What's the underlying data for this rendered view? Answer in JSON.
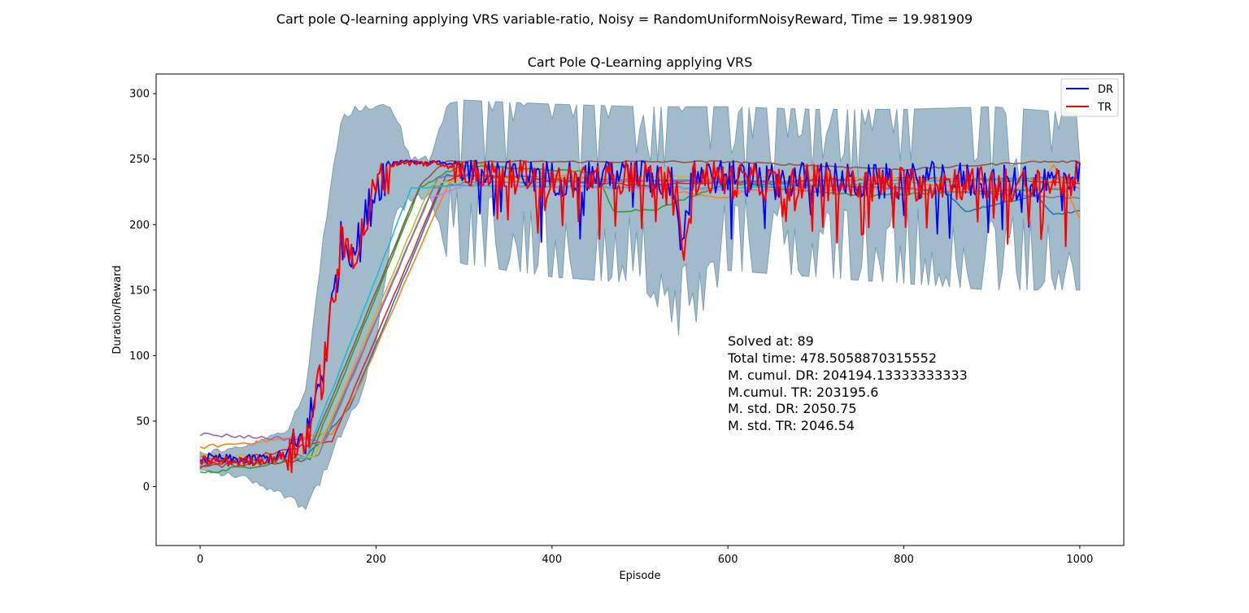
{
  "chart_data": {
    "type": "line",
    "suptitle": "Cart pole Q-learning applying VRS variable-ratio, Noisy = RandomUniformNoisyReward, Time = 19.981909",
    "title": "Cart Pole Q-Learning applying VRS",
    "xlabel": "Episode",
    "ylabel": "Duration/Reward",
    "xlim": [
      -50,
      1050
    ],
    "ylim": [
      -45,
      315
    ],
    "xticks": [
      0,
      200,
      400,
      600,
      800,
      1000
    ],
    "yticks": [
      0,
      50,
      100,
      150,
      200,
      250,
      300
    ],
    "grid": false,
    "legend": {
      "placement": "top-right",
      "entries": [
        {
          "label": "DR",
          "color": "#0000ff"
        },
        {
          "label": "TR",
          "color": "#ff0000"
        }
      ]
    },
    "annotations": [
      "Solved at: 89",
      "Total time: 478.5058870315552",
      "M. cumul. DR: 204194.13333333333",
      "M.cumul. TR: 203195.6",
      "M. std. DR: 2050.75",
      "M. std. TR: 2046.54"
    ],
    "band": {
      "color": "#7a9eb5",
      "x": [
        0,
        50,
        100,
        120,
        140,
        160,
        180,
        200,
        220,
        240,
        260,
        280,
        300,
        400,
        500,
        550,
        600,
        700,
        800,
        900,
        1000
      ],
      "upper": [
        28,
        32,
        45,
        80,
        195,
        285,
        293,
        293,
        290,
        255,
        252,
        292,
        295,
        292,
        290,
        290,
        290,
        288,
        288,
        290,
        285
      ],
      "lower": [
        10,
        5,
        -10,
        -20,
        5,
        35,
        60,
        105,
        200,
        215,
        220,
        175,
        170,
        160,
        155,
        110,
        165,
        160,
        155,
        150,
        150
      ]
    },
    "series": [
      {
        "name": "DR",
        "color": "#0000ff",
        "x": [
          0,
          50,
          100,
          120,
          140,
          160,
          180,
          200,
          210,
          220,
          240,
          260,
          280,
          300,
          350,
          400,
          450,
          500,
          540,
          550,
          560,
          600,
          650,
          700,
          750,
          800,
          850,
          900,
          950,
          1000
        ],
        "values": [
          22,
          20,
          24,
          38,
          90,
          185,
          185,
          230,
          240,
          248,
          249,
          248,
          247,
          245,
          240,
          235,
          238,
          240,
          230,
          190,
          240,
          236,
          233,
          235,
          232,
          233,
          235,
          232,
          230,
          240
        ]
      },
      {
        "name": "TR",
        "color": "#ff0000",
        "x": [
          0,
          50,
          100,
          120,
          140,
          160,
          180,
          200,
          210,
          220,
          240,
          260,
          280,
          300,
          350,
          400,
          450,
          500,
          540,
          550,
          560,
          600,
          650,
          700,
          750,
          800,
          850,
          900,
          950,
          1000
        ],
        "values": [
          20,
          19,
          23,
          36,
          88,
          182,
          183,
          228,
          238,
          247,
          248,
          247,
          246,
          243,
          238,
          233,
          236,
          238,
          228,
          186,
          238,
          234,
          231,
          233,
          230,
          231,
          233,
          230,
          228,
          238
        ]
      },
      {
        "color": "#1f77b4",
        "x": [
          0,
          120,
          170,
          280,
          450,
          600,
          800,
          850,
          870,
          950,
          970,
          1000
        ],
        "values": [
          18,
          22,
          60,
          238,
          235,
          232,
          228,
          224,
          210,
          222,
          208,
          210
        ]
      },
      {
        "color": "#ff7f0e",
        "x": [
          0,
          150,
          180,
          280,
          300,
          600,
          620,
          800,
          950,
          970,
          1000
        ],
        "values": [
          30,
          40,
          75,
          228,
          248,
          220,
          226,
          232,
          225,
          246,
          205
        ]
      },
      {
        "color": "#2ca02c",
        "x": [
          0,
          125,
          250,
          280,
          300,
          450,
          470,
          520,
          600,
          750,
          1000
        ],
        "values": [
          10,
          22,
          228,
          240,
          245,
          240,
          210,
          212,
          232,
          222,
          228
        ]
      },
      {
        "color": "#d62728",
        "x": [
          0,
          150,
          275,
          300,
          500,
          800,
          1000
        ],
        "values": [
          15,
          35,
          232,
          238,
          230,
          236,
          232
        ]
      },
      {
        "color": "#9467bd",
        "x": [
          0,
          140,
          270,
          300,
          600,
          800,
          1000
        ],
        "values": [
          40,
          35,
          236,
          238,
          232,
          234,
          236
        ]
      },
      {
        "color": "#8c564b",
        "x": [
          0,
          120,
          250,
          265,
          280,
          600,
          800,
          950,
          1000
        ],
        "values": [
          15,
          20,
          230,
          240,
          248,
          248,
          242,
          248,
          248
        ]
      },
      {
        "color": "#e377c2",
        "x": [
          0,
          130,
          260,
          300,
          600,
          1000
        ],
        "values": [
          20,
          22,
          220,
          230,
          226,
          228
        ]
      },
      {
        "color": "#7f7f7f",
        "x": [
          0,
          135,
          265,
          300,
          600,
          1000
        ],
        "values": [
          22,
          24,
          228,
          232,
          234,
          220
        ]
      },
      {
        "color": "#bcbd22",
        "x": [
          0,
          130,
          262,
          300,
          600,
          1000
        ],
        "values": [
          24,
          22,
          230,
          235,
          237,
          233
        ]
      },
      {
        "color": "#17becf",
        "x": [
          0,
          120,
          240,
          290,
          600,
          800,
          1000
        ],
        "values": [
          20,
          22,
          228,
          230,
          228,
          232,
          236
        ]
      }
    ]
  }
}
